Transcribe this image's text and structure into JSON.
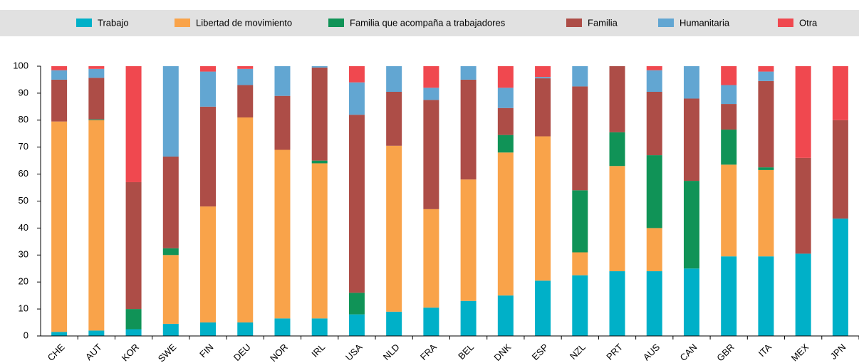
{
  "chart_data": {
    "type": "stacked_bar",
    "categories": [
      "CHE",
      "AUT",
      "KOR",
      "SWE",
      "FIN",
      "DEU",
      "NOR",
      "IRL",
      "USA",
      "NLD",
      "FRA",
      "BEL",
      "DNK",
      "ESP",
      "NZL",
      "PRT",
      "AUS",
      "CAN",
      "GBR",
      "ITA",
      "MEX",
      "JPN"
    ],
    "series": [
      {
        "name": "Trabajo",
        "color": "#00b0c8",
        "values": [
          1.5,
          2,
          2.5,
          4.5,
          5,
          5,
          6.5,
          6.5,
          8,
          9,
          10.5,
          13,
          15,
          20.5,
          22.5,
          24,
          24,
          25,
          29.5,
          29.5,
          30.5,
          43.5
        ]
      },
      {
        "name": "Libertad de movimiento",
        "color": "#f9a34a",
        "values": [
          78,
          78,
          0,
          25.5,
          43,
          76,
          62.5,
          57.5,
          0,
          61.5,
          36.5,
          45,
          53,
          53.5,
          8.5,
          39,
          16,
          0,
          34,
          32,
          0,
          0
        ]
      },
      {
        "name": "Familia que acompaña a trabajadores",
        "color": "#109357",
        "values": [
          0,
          0.3,
          7.5,
          2.5,
          0,
          0,
          0,
          1,
          8,
          0,
          0,
          0,
          6.5,
          0,
          23,
          12.5,
          27,
          32.5,
          13,
          1,
          0,
          0
        ]
      },
      {
        "name": "Familia",
        "color": "#ad4d47",
        "values": [
          15.5,
          15.4,
          47,
          34,
          37,
          12,
          20,
          34.5,
          66,
          20,
          40.5,
          37,
          10,
          21.5,
          38.5,
          24.5,
          23.5,
          30.5,
          9.5,
          32,
          35.5,
          36.5
        ]
      },
      {
        "name": "Humanitaria",
        "color": "#62a6d2",
        "values": [
          3.5,
          3.3,
          0,
          33.5,
          13,
          6,
          11,
          0.5,
          12,
          9.5,
          4.5,
          5,
          7.5,
          0.5,
          7.5,
          0,
          8,
          12,
          7,
          3.5,
          0,
          0
        ]
      },
      {
        "name": "Otra",
        "color": "#f0484f",
        "values": [
          1.5,
          1,
          43,
          0,
          2,
          1,
          0,
          0,
          6,
          0,
          8,
          0,
          8,
          4,
          0,
          0,
          1.5,
          0,
          7,
          2,
          34,
          20
        ]
      }
    ],
    "ylim": [
      0,
      100
    ],
    "yticks": [
      0,
      10,
      20,
      30,
      40,
      50,
      60,
      70,
      80,
      90,
      100
    ],
    "legend": "top"
  }
}
